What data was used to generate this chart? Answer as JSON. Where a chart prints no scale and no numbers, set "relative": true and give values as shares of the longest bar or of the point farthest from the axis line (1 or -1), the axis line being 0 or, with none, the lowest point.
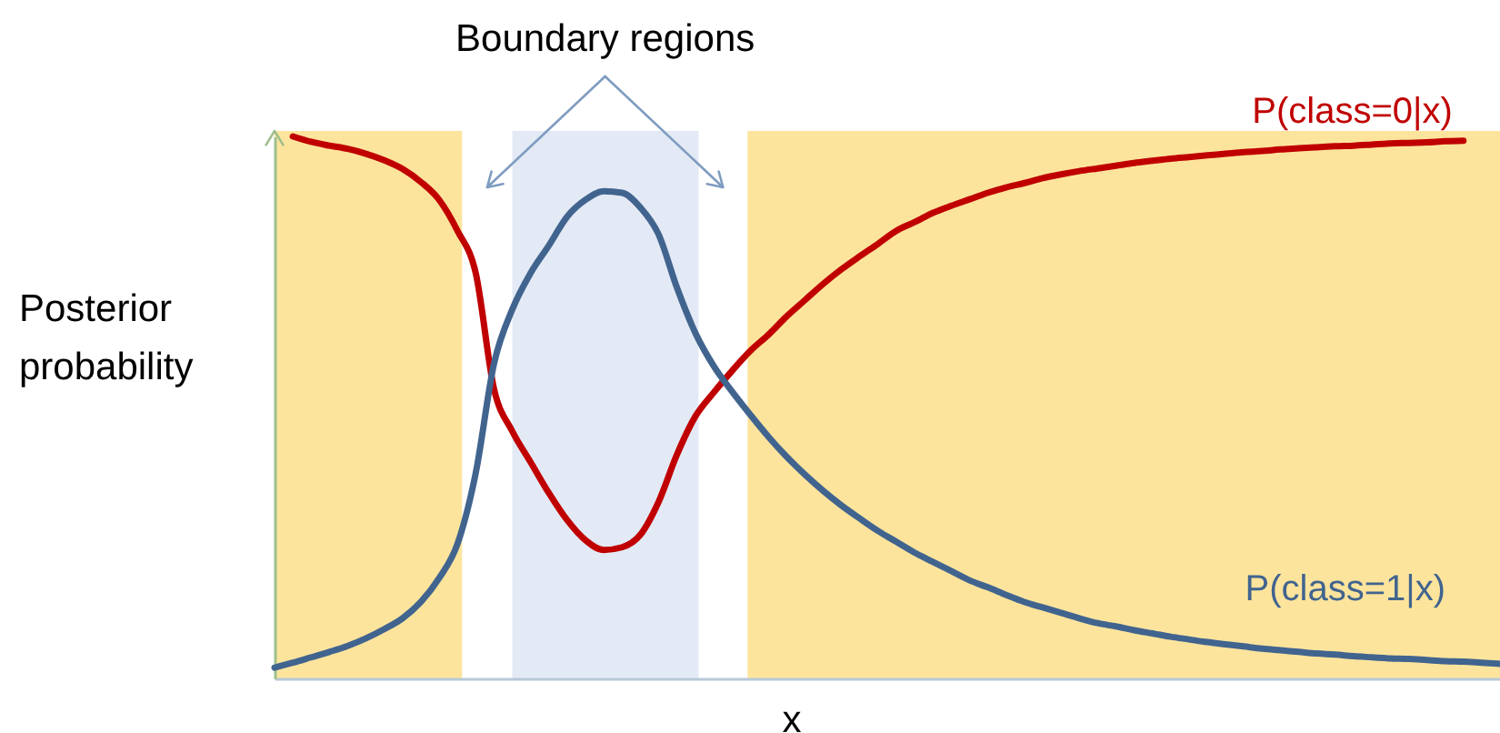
{
  "chart_data": {
    "type": "line",
    "relative": true,
    "ylabel": "Posterior probability",
    "xlabel": "x",
    "annotations": [
      "Boundary regions"
    ],
    "categories": [
      null,
      null,
      null,
      null,
      null,
      null,
      null,
      null,
      null,
      null,
      null,
      null,
      null,
      null,
      null,
      null,
      null,
      null,
      null,
      null,
      null,
      null,
      null,
      null,
      null,
      null,
      null,
      null,
      null,
      null,
      null,
      null,
      null,
      null,
      null,
      null,
      null,
      null,
      null,
      null,
      null,
      null,
      null,
      null,
      null,
      null,
      null,
      null,
      null,
      null,
      null,
      null,
      null,
      null,
      null,
      null,
      null,
      null,
      null,
      null,
      null,
      null,
      null,
      null,
      null,
      null,
      null,
      null
    ],
    "series": [
      {
        "name": "P(class=0|x)",
        "color": "#c00000",
        "values": [
          null,
          1.0,
          0.99,
          0.983,
          0.977,
          0.968,
          0.956,
          0.94,
          0.916,
          0.883,
          0.826,
          0.748,
          0.534,
          0.456,
          0.399,
          0.342,
          0.292,
          0.255,
          0.237,
          0.242,
          0.265,
          0.326,
          0.413,
          0.483,
          0.527,
          0.567,
          0.604,
          0.634,
          0.668,
          0.698,
          0.728,
          0.755,
          0.779,
          0.802,
          0.826,
          0.842,
          0.859,
          0.872,
          0.884,
          0.896,
          0.906,
          0.914,
          0.923,
          0.93,
          0.936,
          0.941,
          0.946,
          0.951,
          0.955,
          0.959,
          0.962,
          0.965,
          0.968,
          0.971,
          0.973,
          0.976,
          0.978,
          0.98,
          0.982,
          0.983,
          0.985,
          0.987,
          0.988,
          0.989,
          0.991,
          0.992,
          null,
          null
        ]
      },
      {
        "name": "P(class=1|x)",
        "color": "#41648f",
        "values": [
          0.02,
          0.029,
          0.039,
          0.049,
          0.06,
          0.074,
          0.091,
          0.111,
          0.141,
          0.185,
          0.248,
          0.379,
          0.581,
          0.681,
          0.748,
          0.799,
          0.852,
          0.883,
          0.899,
          0.896,
          0.869,
          0.819,
          0.721,
          0.638,
          0.577,
          0.53,
          0.487,
          0.446,
          0.409,
          0.376,
          0.346,
          0.319,
          0.295,
          0.272,
          0.252,
          0.232,
          0.215,
          0.198,
          0.181,
          0.168,
          0.154,
          0.141,
          0.131,
          0.121,
          0.111,
          0.102,
          0.096,
          0.089,
          0.083,
          0.077,
          0.072,
          0.067,
          0.063,
          0.059,
          0.055,
          0.052,
          0.049,
          0.046,
          0.044,
          0.041,
          0.039,
          0.037,
          0.036,
          0.034,
          0.032,
          0.031,
          0.029,
          0.027
        ]
      }
    ],
    "line_style": "solid",
    "tick_labels": false
  }
}
